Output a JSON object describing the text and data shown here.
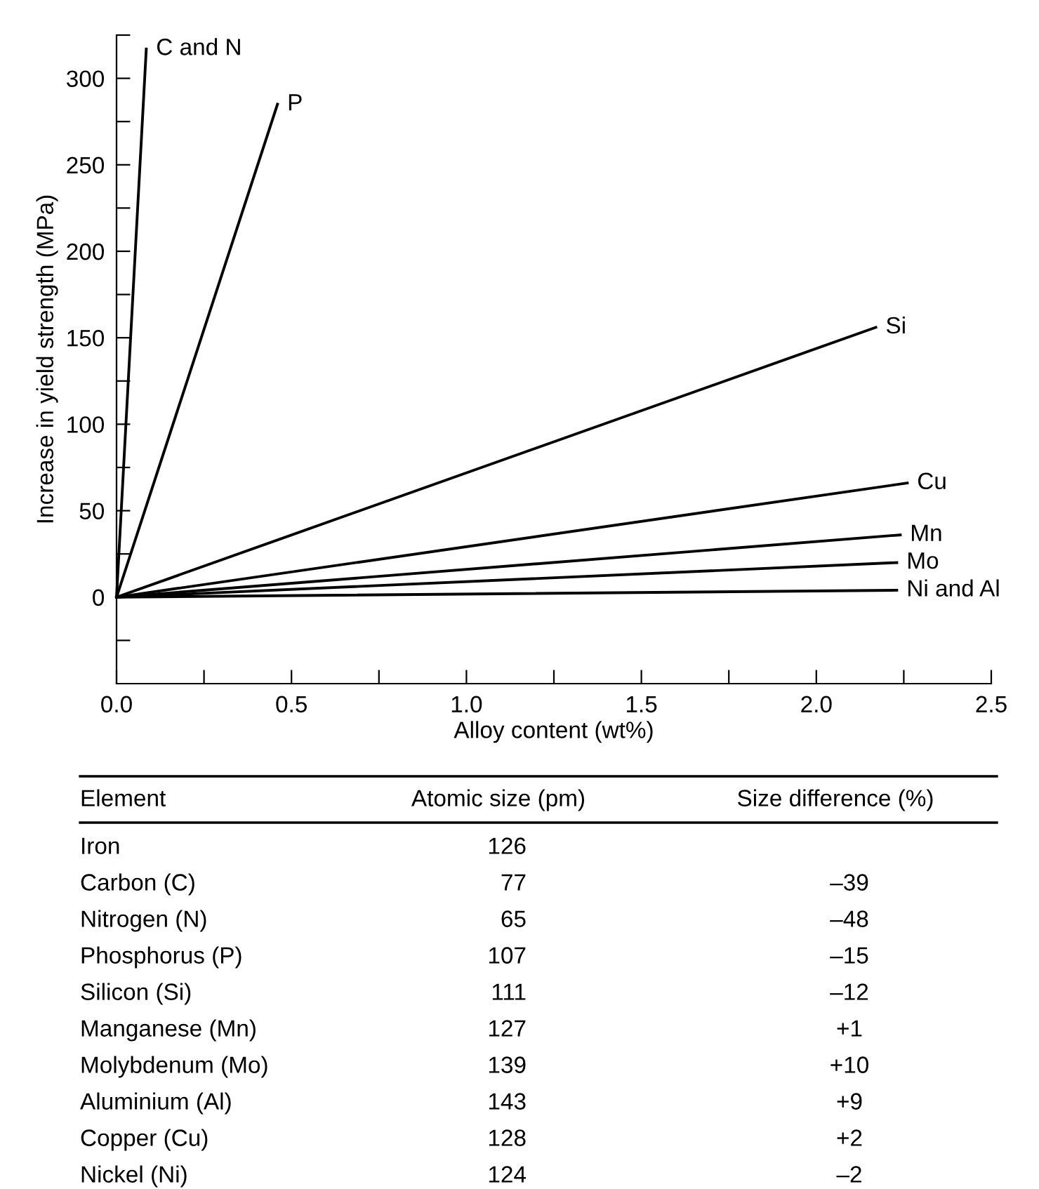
{
  "chart_data": [
    {
      "type": "line",
      "xlabel": "Alloy content (wt%)",
      "ylabel": "Increase in yield strength (MPa)",
      "xlim": [
        0,
        2.5
      ],
      "ylim": [
        -50,
        325
      ],
      "xticks": [
        {
          "value": 0,
          "label": "0.0"
        },
        {
          "value": 0.25,
          "label": null
        },
        {
          "value": 0.5,
          "label": "0.5"
        },
        {
          "value": 0.75,
          "label": null
        },
        {
          "value": 1.0,
          "label": "1.0"
        },
        {
          "value": 1.25,
          "label": null
        },
        {
          "value": 1.5,
          "label": "1.5"
        },
        {
          "value": 1.75,
          "label": null
        },
        {
          "value": 2.0,
          "label": "2.0"
        },
        {
          "value": 2.25,
          "label": null
        },
        {
          "value": 2.5,
          "label": "2.5"
        }
      ],
      "yticks": [
        {
          "value": -25,
          "label": null
        },
        0,
        {
          "value": 25,
          "label": null
        },
        50,
        {
          "value": 75,
          "label": null
        },
        100,
        {
          "value": 125,
          "label": null
        },
        150,
        {
          "value": 175,
          "label": null
        },
        200,
        {
          "value": 225,
          "label": null
        },
        250,
        {
          "value": 275,
          "label": null
        },
        300,
        {
          "value": 325,
          "label": null
        }
      ],
      "grid": false,
      "legend": false,
      "marker": "none",
      "line_style": "solid",
      "series": [
        {
          "name": "C and N",
          "color": "#000000",
          "x": [
            0,
            0.085
          ],
          "values": [
            0,
            317
          ]
        },
        {
          "name": "P",
          "color": "#000000",
          "x": [
            0,
            0.46
          ],
          "values": [
            0,
            285
          ]
        },
        {
          "name": "Si",
          "color": "#000000",
          "x": [
            0,
            2.17
          ],
          "values": [
            0,
            156
          ]
        },
        {
          "name": "Cu",
          "color": "#000000",
          "x": [
            0,
            2.26
          ],
          "values": [
            0,
            66
          ]
        },
        {
          "name": "Mn",
          "color": "#000000",
          "x": [
            0,
            2.24
          ],
          "values": [
            0,
            36
          ]
        },
        {
          "name": "Mo",
          "color": "#000000",
          "x": [
            0,
            2.23
          ],
          "values": [
            0,
            20
          ]
        },
        {
          "name": "Ni and Al",
          "color": "#000000",
          "x": [
            0,
            2.23
          ],
          "values": [
            0,
            4
          ]
        }
      ]
    },
    {
      "type": "other",
      "annotations": [
        "Element",
        "Atomic size (pm)",
        "Size difference (%)",
        "Iron",
        "126",
        null,
        "Carbon (C)",
        "77",
        "–39",
        "Nitrogen (N)",
        "65",
        "–48",
        "Phosphorus (P)",
        "107",
        "–15",
        "Silicon (Si)",
        "111",
        "–12",
        "Manganese (Mn)",
        "127",
        "+1",
        "Molybdenum (Mo)",
        "139",
        "+10",
        "Aluminium (Al)",
        "143",
        "+9",
        "Copper (Cu)",
        "128",
        "+2",
        "Nickel (Ni)",
        "124",
        "–2"
      ]
    }
  ]
}
